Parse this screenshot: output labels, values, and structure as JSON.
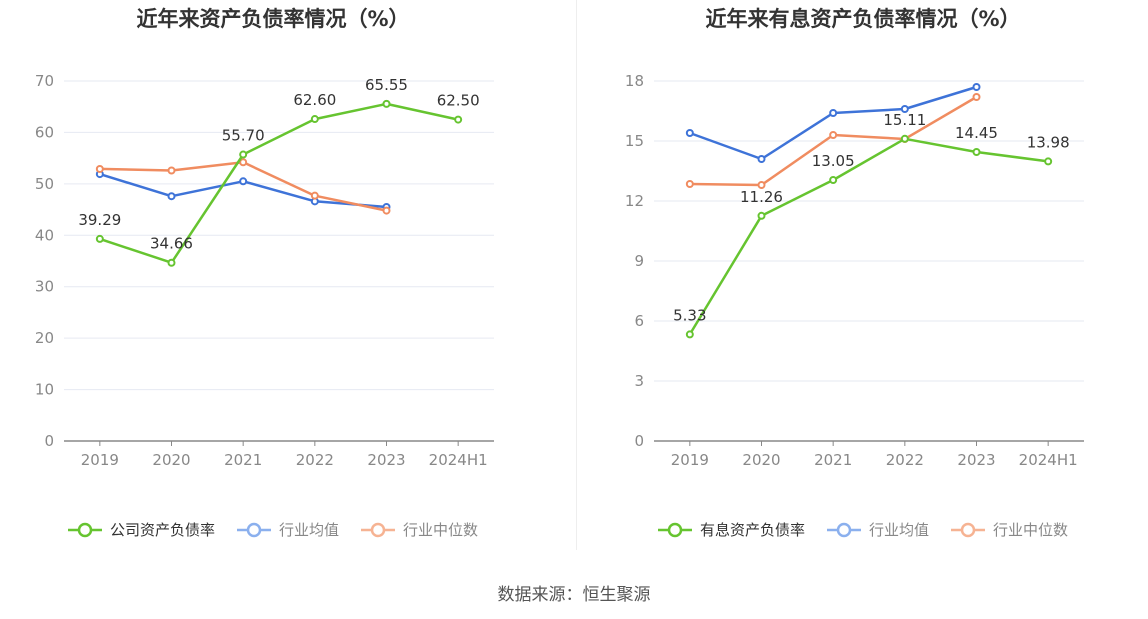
{
  "colors": {
    "company": "#66c430",
    "avg": "#3e73d8",
    "median": "#f08c60",
    "legend_avg": "#8bb0ee",
    "legend_median": "#f6b393",
    "grid": "#e6e9f2",
    "axis": "#888888",
    "tick_text": "#888888",
    "title": "#333333",
    "label": "#333333"
  },
  "chart_data": [
    {
      "type": "line",
      "title": "近年来资产负债率情况（%）",
      "categories": [
        "2019",
        "2020",
        "2021",
        "2022",
        "2023",
        "2024H1"
      ],
      "ylim": [
        0,
        70
      ],
      "yticks": [
        0,
        10,
        20,
        30,
        40,
        50,
        60,
        70
      ],
      "grid": true,
      "legend_position": "bottom",
      "series": [
        {
          "name": "公司资产负债率",
          "color_key": "company",
          "values": [
            39.29,
            34.66,
            55.7,
            62.6,
            65.55,
            62.5
          ],
          "labels": [
            "39.29",
            "34.66",
            "55.70",
            "62.60",
            "65.55",
            "62.50"
          ]
        },
        {
          "name": "行业均值",
          "color_key": "avg",
          "values": [
            51.9,
            47.6,
            50.5,
            46.6,
            45.5,
            null
          ]
        },
        {
          "name": "行业中位数",
          "color_key": "median",
          "values": [
            52.9,
            52.6,
            54.2,
            47.7,
            44.8,
            null
          ]
        }
      ]
    },
    {
      "type": "line",
      "title": "近年来有息资产负债率情况（%）",
      "categories": [
        "2019",
        "2020",
        "2021",
        "2022",
        "2023",
        "2024H1"
      ],
      "ylim": [
        0,
        18
      ],
      "yticks": [
        0,
        3,
        6,
        9,
        12,
        15,
        18
      ],
      "grid": true,
      "legend_position": "bottom",
      "series": [
        {
          "name": "有息资产负债率",
          "color_key": "company",
          "values": [
            5.33,
            11.26,
            13.05,
            15.11,
            14.45,
            13.98
          ],
          "labels": [
            "5.33",
            "11.26",
            "13.05",
            "15.11",
            "14.45",
            "13.98"
          ]
        },
        {
          "name": "行业均值",
          "color_key": "avg",
          "values": [
            15.4,
            14.1,
            16.4,
            16.6,
            17.7,
            null
          ]
        },
        {
          "name": "行业中位数",
          "color_key": "median",
          "values": [
            12.85,
            12.8,
            15.3,
            15.1,
            17.2,
            null
          ]
        }
      ]
    }
  ],
  "source": "数据来源：恒生聚源"
}
